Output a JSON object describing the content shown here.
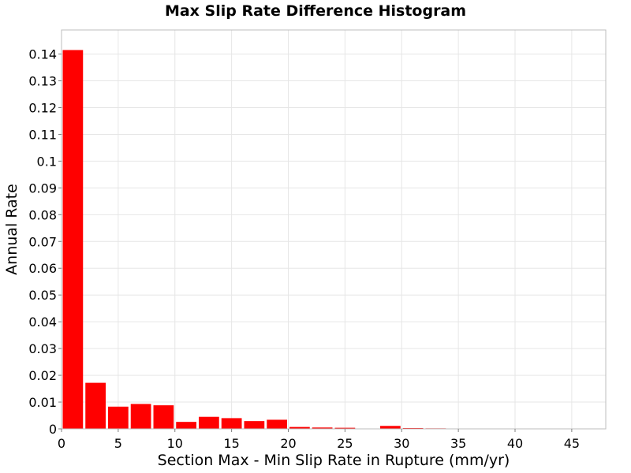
{
  "chart_data": {
    "type": "bar",
    "title": "Max Slip Rate Difference Histogram",
    "xlabel": "Section Max - Min Slip Rate in Rupture (mm/yr)",
    "ylabel": "Annual Rate",
    "xlim": [
      0,
      48
    ],
    "ylim": [
      0,
      0.149
    ],
    "bin_width": 2,
    "x_ticks": [
      0,
      5,
      10,
      15,
      20,
      25,
      30,
      35,
      40,
      45
    ],
    "x_tick_labels": [
      "0",
      "5",
      "10",
      "15",
      "20",
      "25",
      "30",
      "35",
      "40",
      "45"
    ],
    "y_ticks": [
      0,
      0.01,
      0.02,
      0.03,
      0.04,
      0.05,
      0.06,
      0.07,
      0.08,
      0.09,
      0.1,
      0.11,
      0.12,
      0.13,
      0.14
    ],
    "y_tick_labels": [
      "0",
      "0.01",
      "0.02",
      "0.03",
      "0.04",
      "0.05",
      "0.06",
      "0.07",
      "0.08",
      "0.09",
      "0.1",
      "0.11",
      "0.12",
      "0.13",
      "0.14"
    ],
    "grid": true,
    "bar_color": "#ff0000",
    "bin_centers": [
      1,
      3,
      5,
      7,
      9,
      11,
      13,
      15,
      17,
      19,
      21,
      23,
      25,
      27,
      29,
      31,
      33,
      35,
      37,
      39,
      41,
      43,
      45,
      47
    ],
    "values": [
      0.1415,
      0.0172,
      0.0083,
      0.0093,
      0.0088,
      0.0026,
      0.0045,
      0.004,
      0.0029,
      0.0034,
      0.0007,
      0.0005,
      0.0004,
      0.0,
      0.0011,
      0.0003,
      0.0002,
      0.0,
      0.0001,
      0.0001,
      0.0001,
      0.0001,
      0.0,
      0.0
    ]
  }
}
